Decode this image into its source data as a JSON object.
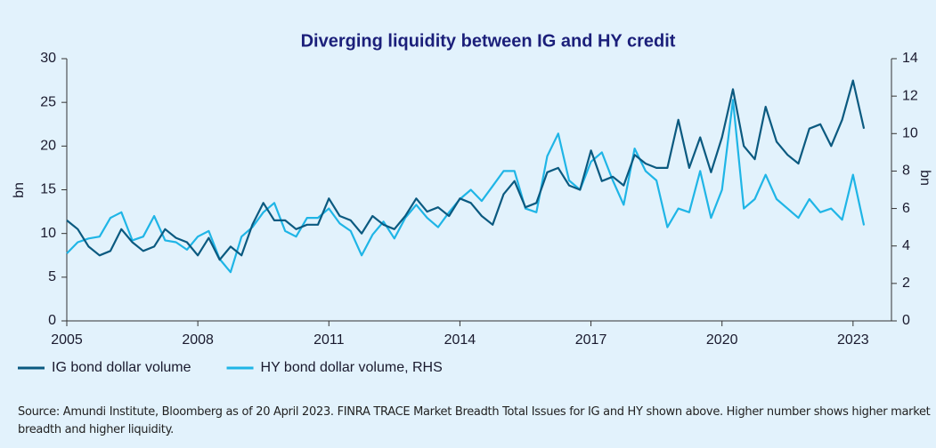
{
  "chart_data": {
    "type": "line",
    "title": "Diverging liquidity between IG and HY credit",
    "y_label": "bn",
    "y2_label": "bn",
    "source": "Source: Amundi Institute, Bloomberg as of 20 April 2023. FINRA TRACE Market Breadth Total Issues for IG and HY shown above. Higher number shows higher market breadth and higher liquidity.",
    "x": [
      2005,
      2005.25,
      2005.5,
      2005.75,
      2006,
      2006.25,
      2006.5,
      2006.75,
      2007,
      2007.25,
      2007.5,
      2007.75,
      2008,
      2008.25,
      2008.5,
      2008.75,
      2009,
      2009.25,
      2009.5,
      2009.75,
      2010,
      2010.25,
      2010.5,
      2010.75,
      2011,
      2011.25,
      2011.5,
      2011.75,
      2012,
      2012.25,
      2012.5,
      2012.75,
      2013,
      2013.25,
      2013.5,
      2013.75,
      2014,
      2014.25,
      2014.5,
      2014.75,
      2015,
      2015.25,
      2015.5,
      2015.75,
      2016,
      2016.25,
      2016.5,
      2016.75,
      2017,
      2017.25,
      2017.5,
      2017.75,
      2018,
      2018.25,
      2018.5,
      2018.75,
      2019,
      2019.25,
      2019.5,
      2019.75,
      2020,
      2020.25,
      2020.5,
      2020.75,
      2021,
      2021.25,
      2021.5,
      2021.75,
      2022,
      2022.25,
      2022.5,
      2022.75,
      2023,
      2023.25
    ],
    "series": [
      {
        "name": "IG bond dollar volume",
        "color": "#0b5a80",
        "values": [
          11.5,
          10.5,
          8.5,
          7.5,
          8,
          10.5,
          9,
          8,
          8.5,
          10.5,
          9.5,
          9,
          7.5,
          9.5,
          7,
          8.5,
          7.5,
          11,
          13.5,
          11.5,
          11.5,
          10.5,
          11,
          11,
          14,
          12,
          11.5,
          10,
          12,
          11,
          10.5,
          12,
          14,
          12.5,
          13,
          12,
          14,
          13.5,
          12,
          11,
          14.5,
          16,
          13,
          13.5,
          17,
          17.5,
          15.5,
          15,
          19.5,
          16,
          16.5,
          15.5,
          19,
          18,
          17.5,
          17.5,
          23,
          17.5,
          21,
          17,
          21,
          26.5,
          20,
          18.5,
          24.5,
          20.5,
          19,
          18,
          22,
          22.5,
          20,
          23,
          27.5,
          22
        ]
      },
      {
        "name": "HY bond dollar volume, RHS",
        "color": "#1fb5e6",
        "axis": "y2",
        "values": [
          3.6,
          4.2,
          4.4,
          4.5,
          5.5,
          5.8,
          4.3,
          4.5,
          5.6,
          4.3,
          4.2,
          3.8,
          4.5,
          4.8,
          3.3,
          2.6,
          4.5,
          5.0,
          5.8,
          6.3,
          4.8,
          4.5,
          5.5,
          5.5,
          6.0,
          5.2,
          4.8,
          3.5,
          4.6,
          5.3,
          4.4,
          5.5,
          6.2,
          5.5,
          5.0,
          5.8,
          6.5,
          7.0,
          6.4,
          7.2,
          8.0,
          8.0,
          6.0,
          5.8,
          8.8,
          10.0,
          7.5,
          7.0,
          8.5,
          9.0,
          7.5,
          6.2,
          9.2,
          8.0,
          7.5,
          5.0,
          6.0,
          5.8,
          8.0,
          5.5,
          7.0,
          11.8,
          6.0,
          6.5,
          7.8,
          6.5,
          6.0,
          5.5,
          6.5,
          5.8,
          6.0,
          5.4,
          7.8,
          5.1
        ]
      }
    ],
    "xlim": [
      2005,
      2023.88
    ],
    "xticks": [
      2005,
      2008,
      2011,
      2014,
      2017,
      2020,
      2023
    ],
    "ylim": [
      0,
      30
    ],
    "yticks": [
      0,
      5,
      10,
      15,
      20,
      25,
      30
    ],
    "y2lim": [
      0,
      14
    ],
    "y2ticks": [
      0,
      2,
      4,
      6,
      8,
      10,
      12,
      14
    ],
    "legend": "bottom-left"
  }
}
